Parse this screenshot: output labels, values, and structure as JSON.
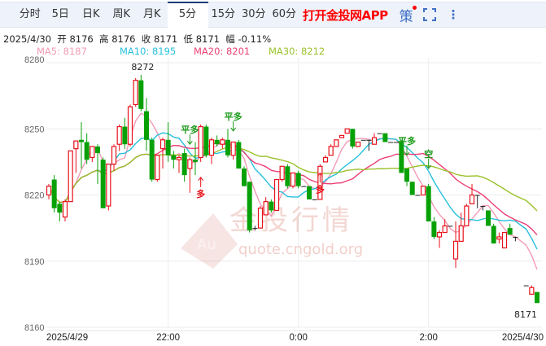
{
  "tabs": [
    "分时",
    "5日",
    "日K",
    "周K",
    "月K",
    "5分",
    "15分",
    "30分",
    "60分"
  ],
  "active_tab": "5分",
  "promo": "打开金投网APP",
  "strategy_label": "策",
  "info": {
    "date": "2025/4/30",
    "open_label": "开",
    "open": "8176",
    "high_label": "高",
    "high": "8176",
    "close_label": "收",
    "close": "8171",
    "low_label": "低",
    "low": "8171",
    "change_label": "幅",
    "change": "-0.11%"
  },
  "ma": [
    {
      "label": "MA5: 8187",
      "color": "#f29bb5"
    },
    {
      "label": "MA10: 8195",
      "color": "#27c0dc"
    },
    {
      "label": "MA20: 8201",
      "color": "#ec3f74"
    },
    {
      "label": "MA30: 8212",
      "color": "#9ac12a"
    }
  ],
  "watermark": {
    "text": "金投行情",
    "url": "quote.cngold.org",
    "logo": "Au"
  },
  "chart_data": {
    "type": "candlestick",
    "ylim": [
      8160,
      8280
    ],
    "yticks": [
      8280,
      8250,
      8220,
      8190,
      8160
    ],
    "xticks": [
      {
        "i": 0,
        "label": "2025/4/29"
      },
      {
        "i": 22,
        "label": "22:00"
      },
      {
        "i": 46,
        "label": "0:00"
      },
      {
        "i": 70,
        "label": "2:00"
      },
      {
        "i": 90,
        "label": "2025/4/30"
      }
    ],
    "grid": true,
    "up_color": "#e8101a",
    "down_color": "#07a107",
    "max_label": "8272",
    "last_label": "8171",
    "ohlc": [
      [
        8220,
        8225,
        8218,
        8224
      ],
      [
        8227,
        8229,
        8212,
        8214
      ],
      [
        8216,
        8217,
        8208,
        8212
      ],
      [
        8210,
        8218,
        8208,
        8217
      ],
      [
        8217,
        8240,
        8217,
        8240
      ],
      [
        8241,
        8244.5,
        8230,
        8244.5
      ],
      [
        8245,
        8253,
        8232,
        8244
      ],
      [
        8244,
        8248,
        8234,
        8236
      ],
      [
        8237,
        8242,
        8235,
        8242
      ],
      [
        8242,
        8243,
        8225,
        8239
      ],
      [
        8236,
        8237,
        8214,
        8214
      ],
      [
        8215,
        8234,
        8213,
        8234
      ],
      [
        8234,
        8243,
        8231,
        8242
      ],
      [
        8243,
        8252,
        8240,
        8251
      ],
      [
        8251,
        8255,
        8241,
        8243
      ],
      [
        8243,
        8261,
        8242,
        8260
      ],
      [
        8261,
        8273,
        8260,
        8272
      ],
      [
        8272,
        8274.5,
        8258,
        8259
      ],
      [
        8258,
        8264,
        8240,
        8245
      ],
      [
        8245,
        8246,
        8226,
        8227
      ],
      [
        8227,
        8238,
        8226,
        8238
      ],
      [
        8241,
        8246,
        8232,
        8245
      ],
      [
        8245,
        8253,
        8235,
        8238
      ],
      [
        8238,
        8240,
        8232,
        8236
      ],
      [
        8236,
        8238,
        8230,
        8237
      ],
      [
        8239,
        8241,
        8226,
        8229
      ],
      [
        8232,
        8237,
        8221,
        8236
      ],
      [
        8236,
        8244,
        8229,
        8235
      ],
      [
        8237,
        8252,
        8235,
        8251
      ],
      [
        8251,
        8252,
        8237,
        8238
      ],
      [
        8238,
        8246,
        8234,
        8245
      ],
      [
        8245,
        8247,
        8242,
        8243
      ],
      [
        8243,
        8246,
        8241,
        8245
      ],
      [
        8245,
        8250,
        8237,
        8238
      ],
      [
        8238,
        8244,
        8236,
        8244
      ],
      [
        8244,
        8245,
        8232,
        8232
      ],
      [
        8232,
        8233,
        8224,
        8224
      ],
      [
        8226,
        8226,
        8203,
        8204
      ],
      [
        8205,
        8206,
        8204,
        8205
      ],
      [
        8205,
        8215,
        8205,
        8214
      ],
      [
        8211,
        8219,
        8211,
        8217
      ],
      [
        8217,
        8218,
        8212,
        8213
      ],
      [
        8213,
        8227,
        8213,
        8227
      ],
      [
        8227,
        8233,
        8226,
        8233
      ],
      [
        8233,
        8234,
        8223,
        8224
      ],
      [
        8224,
        8230,
        8223,
        8230
      ],
      [
        8230,
        8231,
        8223,
        8224
      ],
      [
        8224,
        8224,
        8224,
        8224
      ],
      [
        8224,
        8224,
        8218,
        8218
      ],
      [
        8218,
        8218,
        8218,
        8218
      ],
      [
        8218,
        8234,
        8218,
        8233
      ],
      [
        8235,
        8238,
        8235,
        8237
      ],
      [
        8238,
        8243,
        8238,
        8242
      ],
      [
        8242,
        8245,
        8242,
        8245
      ],
      [
        8246,
        8247,
        8246,
        8247
      ],
      [
        8248,
        8250,
        8248,
        8250
      ],
      [
        8250,
        8250,
        8241,
        8242
      ],
      [
        8242,
        8244,
        8242,
        8244
      ],
      [
        8245,
        8245,
        8245,
        8245
      ],
      [
        8245,
        8245,
        8240,
        8245
      ],
      [
        8243,
        8248,
        8243,
        8246
      ],
      [
        8248,
        8248,
        8248,
        8248
      ],
      [
        8248,
        8248,
        8244,
        8244
      ],
      [
        8244,
        8244,
        8244,
        8244
      ],
      [
        8244,
        8244,
        8244,
        8244
      ],
      [
        8244,
        8245,
        8230,
        8230
      ],
      [
        8232,
        8232,
        8224,
        8226
      ],
      [
        8226,
        8226,
        8220,
        8220
      ],
      [
        8220,
        8220,
        8220,
        8220
      ],
      [
        8220,
        8224,
        8220,
        8224
      ],
      [
        8224,
        8225,
        8208,
        8208
      ],
      [
        8208,
        8210,
        8200,
        8201
      ],
      [
        8201,
        8204,
        8196,
        8203
      ],
      [
        8203,
        8209,
        8203,
        8206
      ],
      [
        8206,
        8206,
        8206,
        8206
      ],
      [
        8191,
        8208,
        8187,
        8199
      ],
      [
        8199,
        8212,
        8199,
        8206
      ],
      [
        8206,
        8216,
        8206,
        8215
      ],
      [
        8216,
        8225,
        8216,
        8220
      ],
      [
        8220,
        8220,
        8214,
        8220
      ],
      [
        8215,
        8215,
        8213,
        8215
      ],
      [
        8213,
        8213,
        8206,
        8206
      ],
      [
        8206,
        8207,
        8198,
        8198
      ],
      [
        8200,
        8203,
        8198,
        8201
      ],
      [
        8196,
        8203,
        8196,
        8203
      ],
      [
        8205,
        8207,
        8202,
        8202
      ],
      [
        8201,
        8201,
        8199,
        8201
      ],
      null,
      [
        8179,
        8179,
        8179,
        8179
      ],
      [
        8175,
        8179,
        8175,
        8178
      ],
      [
        8176,
        8176,
        8171,
        8171
      ]
    ],
    "signals": [
      {
        "i": 26,
        "text": "平多",
        "dir": "down",
        "price": 8243,
        "color": "#1a9a1a"
      },
      {
        "i": 34,
        "text": "平多",
        "dir": "down",
        "price": 8249,
        "color": "#1a9a1a"
      },
      {
        "i": 28,
        "text": "多",
        "dir": "up",
        "price": 8228,
        "color": "#e8101a"
      },
      {
        "i": 50,
        "text": "多",
        "dir": "up",
        "price": 8230,
        "color": "#e8101a"
      },
      {
        "i": 66,
        "text": "平多",
        "dir": "down",
        "price": 8238,
        "color": "#1a9a1a"
      },
      {
        "i": 70,
        "text": "空",
        "dir": "down",
        "price": 8232,
        "color": "#1a9a1a"
      }
    ]
  }
}
